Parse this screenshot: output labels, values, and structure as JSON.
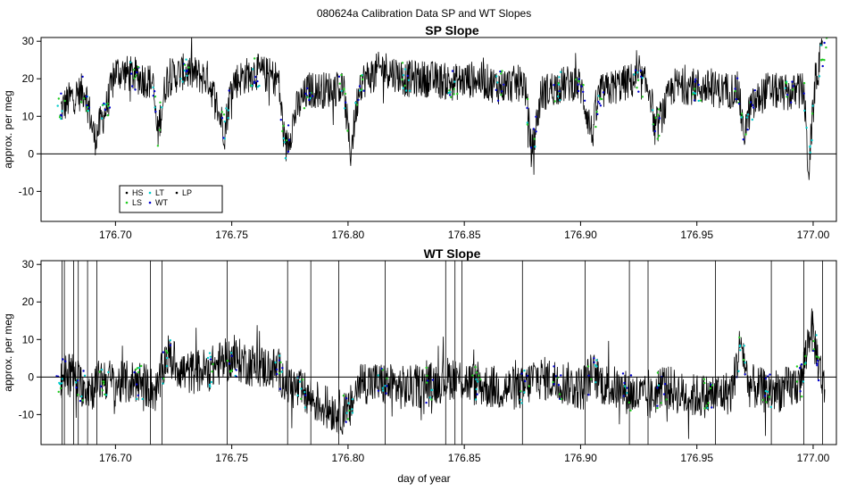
{
  "figure_title": "080624a   Calibration Data SP and WT Slopes",
  "xlabel": "day of year",
  "colors": {
    "HS": "#000000",
    "LS": "#22cc22",
    "LT": "#00cccc",
    "WT": "#0000cc",
    "LP": "#000000",
    "line": "#000000"
  },
  "chart_data": [
    {
      "type": "line",
      "title": "SP Slope",
      "ylabel": "approx. per meg",
      "xlim": [
        176.668,
        177.01
      ],
      "ylim": [
        -18,
        31
      ],
      "xticks": [
        176.7,
        176.75,
        176.8,
        176.85,
        176.9,
        176.95,
        177.0
      ],
      "xtick_labels": [
        "176.70",
        "176.75",
        "176.80",
        "176.85",
        "176.90",
        "176.95",
        "177.00"
      ],
      "yticks": [
        -10,
        0,
        10,
        20,
        30
      ],
      "ytick_labels": [
        "-10",
        "0",
        "10",
        "20",
        "30"
      ],
      "hline": 0,
      "legend": {
        "position": "bottom-left",
        "entries": [
          "HS",
          "LS",
          "LT",
          "WT",
          "LP"
        ]
      },
      "series": [
        {
          "name": "WT",
          "x": [
            176.6765,
            176.681,
            176.687,
            176.691,
            176.696,
            176.7,
            176.708,
            176.716,
            176.718,
            176.722,
            176.73,
            176.74,
            176.747,
            176.75,
            176.76,
            176.77,
            176.773,
            176.778,
            176.783,
            176.79,
            176.798,
            176.801,
            176.805,
            176.815,
            176.825,
            176.835,
            176.845,
            176.855,
            176.865,
            176.876,
            176.879,
            176.883,
            176.89,
            176.897,
            176.9,
            176.905,
            176.908,
            176.915,
            176.925,
            176.93,
            176.932,
            176.94,
            176.95,
            176.96,
            176.968,
            176.97,
            176.973,
            176.98,
            176.99,
            176.996,
            176.998,
            177.001,
            177.004
          ],
          "values": [
            12,
            15,
            17,
            4,
            12,
            22,
            21,
            19,
            5,
            20,
            22,
            20,
            6,
            19,
            22,
            20,
            1,
            12,
            17,
            17,
            18,
            0,
            19,
            23,
            20,
            20,
            19,
            20,
            18,
            19,
            0,
            16,
            18,
            19,
            18,
            5,
            16,
            18,
            20,
            17,
            6,
            18,
            18,
            17,
            17,
            5,
            12,
            17,
            16,
            17,
            -5,
            20,
            27
          ]
        }
      ],
      "noise_amplitude": 5
    },
    {
      "type": "line",
      "title": "WT Slope",
      "ylabel": "approx. per meg",
      "xlim": [
        176.668,
        177.01
      ],
      "ylim": [
        -18,
        31
      ],
      "xticks": [
        176.7,
        176.75,
        176.8,
        176.85,
        176.9,
        176.95,
        177.0
      ],
      "xtick_labels": [
        "176.70",
        "176.75",
        "176.80",
        "176.85",
        "176.90",
        "176.95",
        "177.00"
      ],
      "yticks": [
        -10,
        0,
        10,
        20,
        30
      ],
      "ytick_labels": [
        "-10",
        "0",
        "10",
        "20",
        "30"
      ],
      "hline": 0,
      "series": [
        {
          "name": "WT",
          "x": [
            176.6765,
            176.68,
            176.685,
            176.69,
            176.695,
            176.7,
            176.71,
            176.718,
            176.722,
            176.73,
            176.74,
            176.746,
            176.75,
            176.76,
            176.77,
            176.774,
            176.78,
            176.79,
            176.8,
            176.805,
            176.815,
            176.825,
            176.835,
            176.845,
            176.855,
            176.865,
            176.876,
            176.88,
            176.89,
            176.9,
            176.905,
            176.91,
            176.92,
            176.93,
            176.935,
            176.945,
            176.955,
            176.965,
            176.969,
            176.972,
            176.98,
            176.99,
            176.995,
            176.999,
            177.002,
            177.005
          ],
          "values": [
            0,
            2,
            -2,
            -3,
            0,
            -2,
            -1,
            -4,
            6,
            1,
            2,
            4,
            5,
            3,
            2,
            -2,
            -4,
            -8,
            -10,
            -1,
            -2,
            -3,
            -2,
            0,
            -2,
            -3,
            -3,
            0,
            -1,
            -3,
            1,
            -2,
            -4,
            -6,
            -2,
            -5,
            -5,
            -4,
            10,
            -2,
            -4,
            -3,
            -1,
            14,
            5,
            -4
          ]
        }
      ],
      "noise_amplitude": 6,
      "spikes_x": [
        176.677,
        176.678,
        176.682,
        176.684,
        176.688,
        176.692,
        176.715,
        176.72,
        176.748,
        176.774,
        176.784,
        176.796,
        176.816,
        176.842,
        176.846,
        176.849,
        176.875,
        176.902,
        176.921,
        176.929,
        176.958,
        176.982,
        176.996,
        177.004
      ]
    }
  ]
}
